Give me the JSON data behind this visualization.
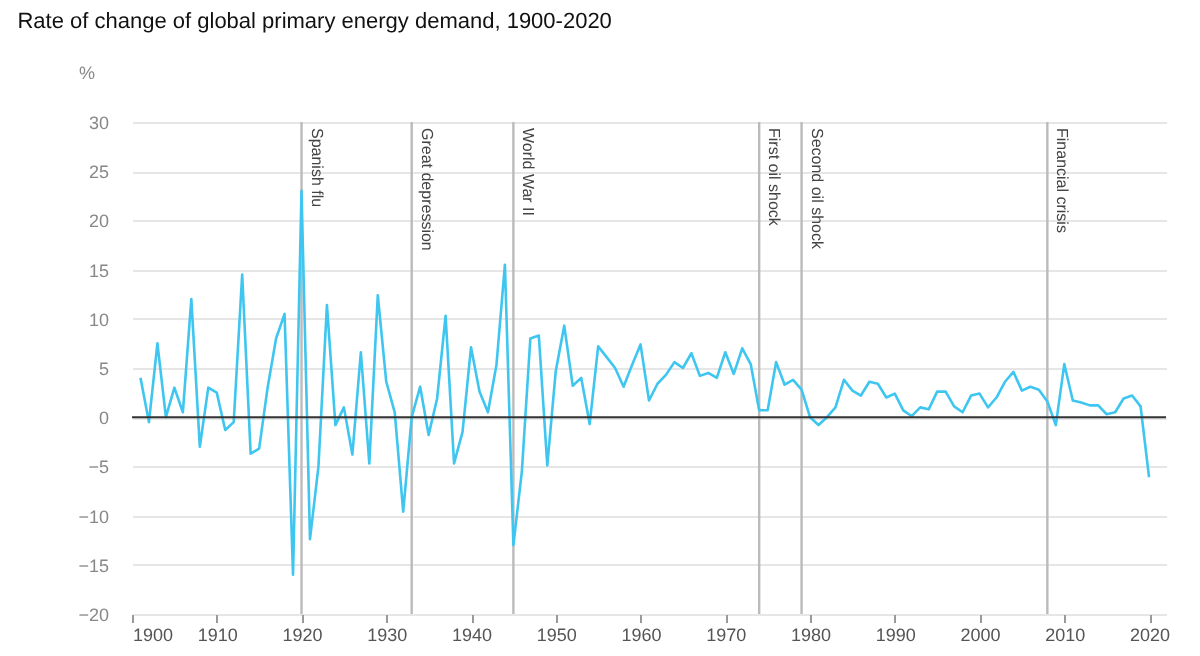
{
  "chart_data": {
    "type": "line",
    "title": "Rate of change of global primary energy demand, 1900-2020",
    "ylabel": "%",
    "x": [
      1901,
      1902,
      1903,
      1904,
      1905,
      1906,
      1907,
      1908,
      1909,
      1910,
      1911,
      1912,
      1913,
      1914,
      1915,
      1916,
      1917,
      1918,
      1919,
      1920,
      1921,
      1922,
      1923,
      1924,
      1925,
      1926,
      1927,
      1928,
      1929,
      1930,
      1931,
      1932,
      1933,
      1934,
      1935,
      1936,
      1937,
      1938,
      1939,
      1940,
      1941,
      1942,
      1943,
      1944,
      1945,
      1946,
      1947,
      1948,
      1949,
      1950,
      1951,
      1952,
      1953,
      1954,
      1955,
      1956,
      1957,
      1958,
      1959,
      1960,
      1961,
      1962,
      1963,
      1964,
      1965,
      1966,
      1967,
      1968,
      1969,
      1970,
      1971,
      1972,
      1973,
      1974,
      1975,
      1976,
      1977,
      1978,
      1979,
      1980,
      1981,
      1982,
      1983,
      1984,
      1985,
      1986,
      1987,
      1988,
      1989,
      1990,
      1991,
      1992,
      1993,
      1994,
      1995,
      1996,
      1997,
      1998,
      1999,
      2000,
      2001,
      2002,
      2003,
      2004,
      2005,
      2006,
      2007,
      2008,
      2009,
      2010,
      2011,
      2012,
      2013,
      2014,
      2015,
      2016,
      2017,
      2018,
      2019,
      2020
    ],
    "series": [
      {
        "color": "#3ec6f0",
        "values": [
          4,
          -0.5,
          7.5,
          0,
          3,
          0.5,
          12,
          -3,
          3,
          2.5,
          -1.3,
          -0.5,
          14.5,
          -3.7,
          -3.2,
          3,
          8,
          10.5,
          -16,
          23,
          -12.4,
          -5,
          11.4,
          -0.8,
          1,
          -3.8,
          6.6,
          -4.7,
          12.4,
          3.6,
          0.5,
          -9.6,
          0,
          3.1,
          -1.8,
          1.9,
          10.3,
          -4.7,
          -1.5,
          7.1,
          2.6,
          0.5,
          5.3,
          15.5,
          -13,
          -5.5,
          8,
          8.3,
          -4.9,
          4.7,
          9.3,
          3.2,
          4,
          -0.7,
          7.2,
          6.1,
          5,
          3.1,
          5.3,
          7.4,
          1.7,
          3.4,
          4.3,
          5.6,
          5,
          6.5,
          4.2,
          4.5,
          4,
          6.6,
          4.4,
          7,
          5.4,
          0.7,
          0.7,
          5.6,
          3.3,
          3.8,
          2.8,
          0,
          -0.8,
          0,
          1,
          3.8,
          2.7,
          2.2,
          3.6,
          3.4,
          2,
          2.4,
          0.7,
          0.1,
          1,
          0.8,
          2.6,
          2.6,
          1.1,
          0.5,
          2.2,
          2.4,
          1,
          2,
          3.6,
          4.6,
          2.7,
          3.1,
          2.8,
          1.6,
          -0.8,
          5.4,
          1.7,
          1.5,
          1.2,
          1.2,
          0.3,
          0.5,
          1.9,
          2.2,
          1.1,
          -6.1
        ]
      }
    ],
    "xlim": [
      1900,
      2022
    ],
    "xticks": [
      1900,
      1910,
      1920,
      1930,
      1940,
      1950,
      1960,
      1970,
      1980,
      1990,
      2000,
      2010,
      2020
    ],
    "ylim": [
      -20,
      30
    ],
    "yticks": [
      -20,
      -15,
      -10,
      -5,
      0,
      5,
      10,
      15,
      20,
      25,
      30
    ],
    "grid": "y",
    "ref_lines": [
      {
        "axis": "y",
        "value": 0,
        "color": "#333333"
      },
      {
        "axis": "x",
        "value": 1920,
        "label": "Spanish flu",
        "color": "#bbbbbb"
      },
      {
        "axis": "x",
        "value": 1933,
        "label": "Great depression",
        "color": "#bbbbbb"
      },
      {
        "axis": "x",
        "value": 1945,
        "label": "World War II",
        "color": "#bbbbbb"
      },
      {
        "axis": "x",
        "value": 1974,
        "label": "First oil shock",
        "color": "#bbbbbb"
      },
      {
        "axis": "x",
        "value": 1979,
        "label": "Second oil shock",
        "color": "#bbbbbb"
      },
      {
        "axis": "x",
        "value": 2008,
        "label": "Financial crisis",
        "color": "#bbbbbb"
      }
    ]
  }
}
